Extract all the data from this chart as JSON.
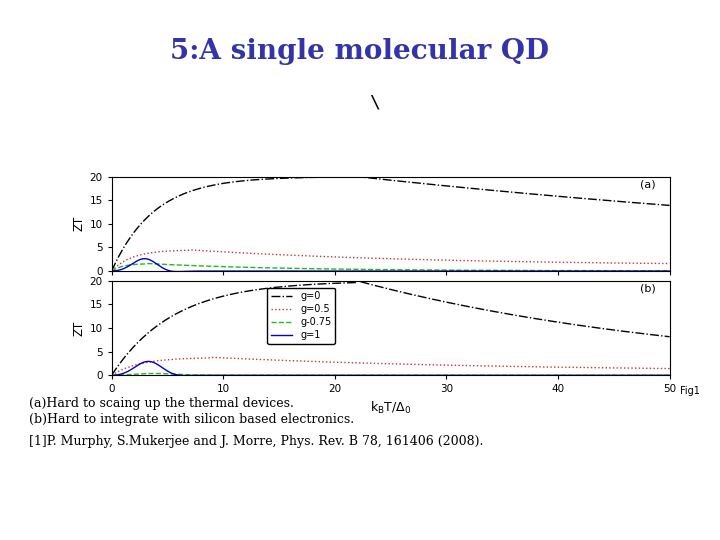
{
  "title": "5:A single molecular QD",
  "title_color": "#3333aa",
  "title_fontsize": 20,
  "ylabel": "ZT",
  "xlim": [
    0,
    50
  ],
  "ylim": [
    0,
    20
  ],
  "xticks": [
    0,
    10,
    20,
    30,
    40,
    50
  ],
  "yticks": [
    0,
    5,
    10,
    15,
    20
  ],
  "label_a": "(a)",
  "label_b": "(b)",
  "fig1_label": "Fig1",
  "line_styles": {
    "g0": {
      "color": "#000000",
      "linestyle": "-.",
      "linewidth": 1.0,
      "label": "g=0"
    },
    "g05": {
      "color": "#cc3333",
      "linestyle": ":",
      "linewidth": 1.0,
      "label": "g=0.5"
    },
    "g075": {
      "color": "#22bb22",
      "linestyle": "--",
      "linewidth": 1.0,
      "label": "g-0.75"
    },
    "g1": {
      "color": "#0000cc",
      "linestyle": "-",
      "linewidth": 1.0,
      "label": "g=1"
    }
  },
  "caption_lines": [
    "(a)Hard to scaing up the thermal devices.",
    "(b)Hard to integrate with silicon based electronics.",
    "[1]P. Murphy, S.Mukerjee and J. Morre, Phys. Rev. B 78, 161406 (2008)."
  ],
  "caption_fontsize": 9
}
